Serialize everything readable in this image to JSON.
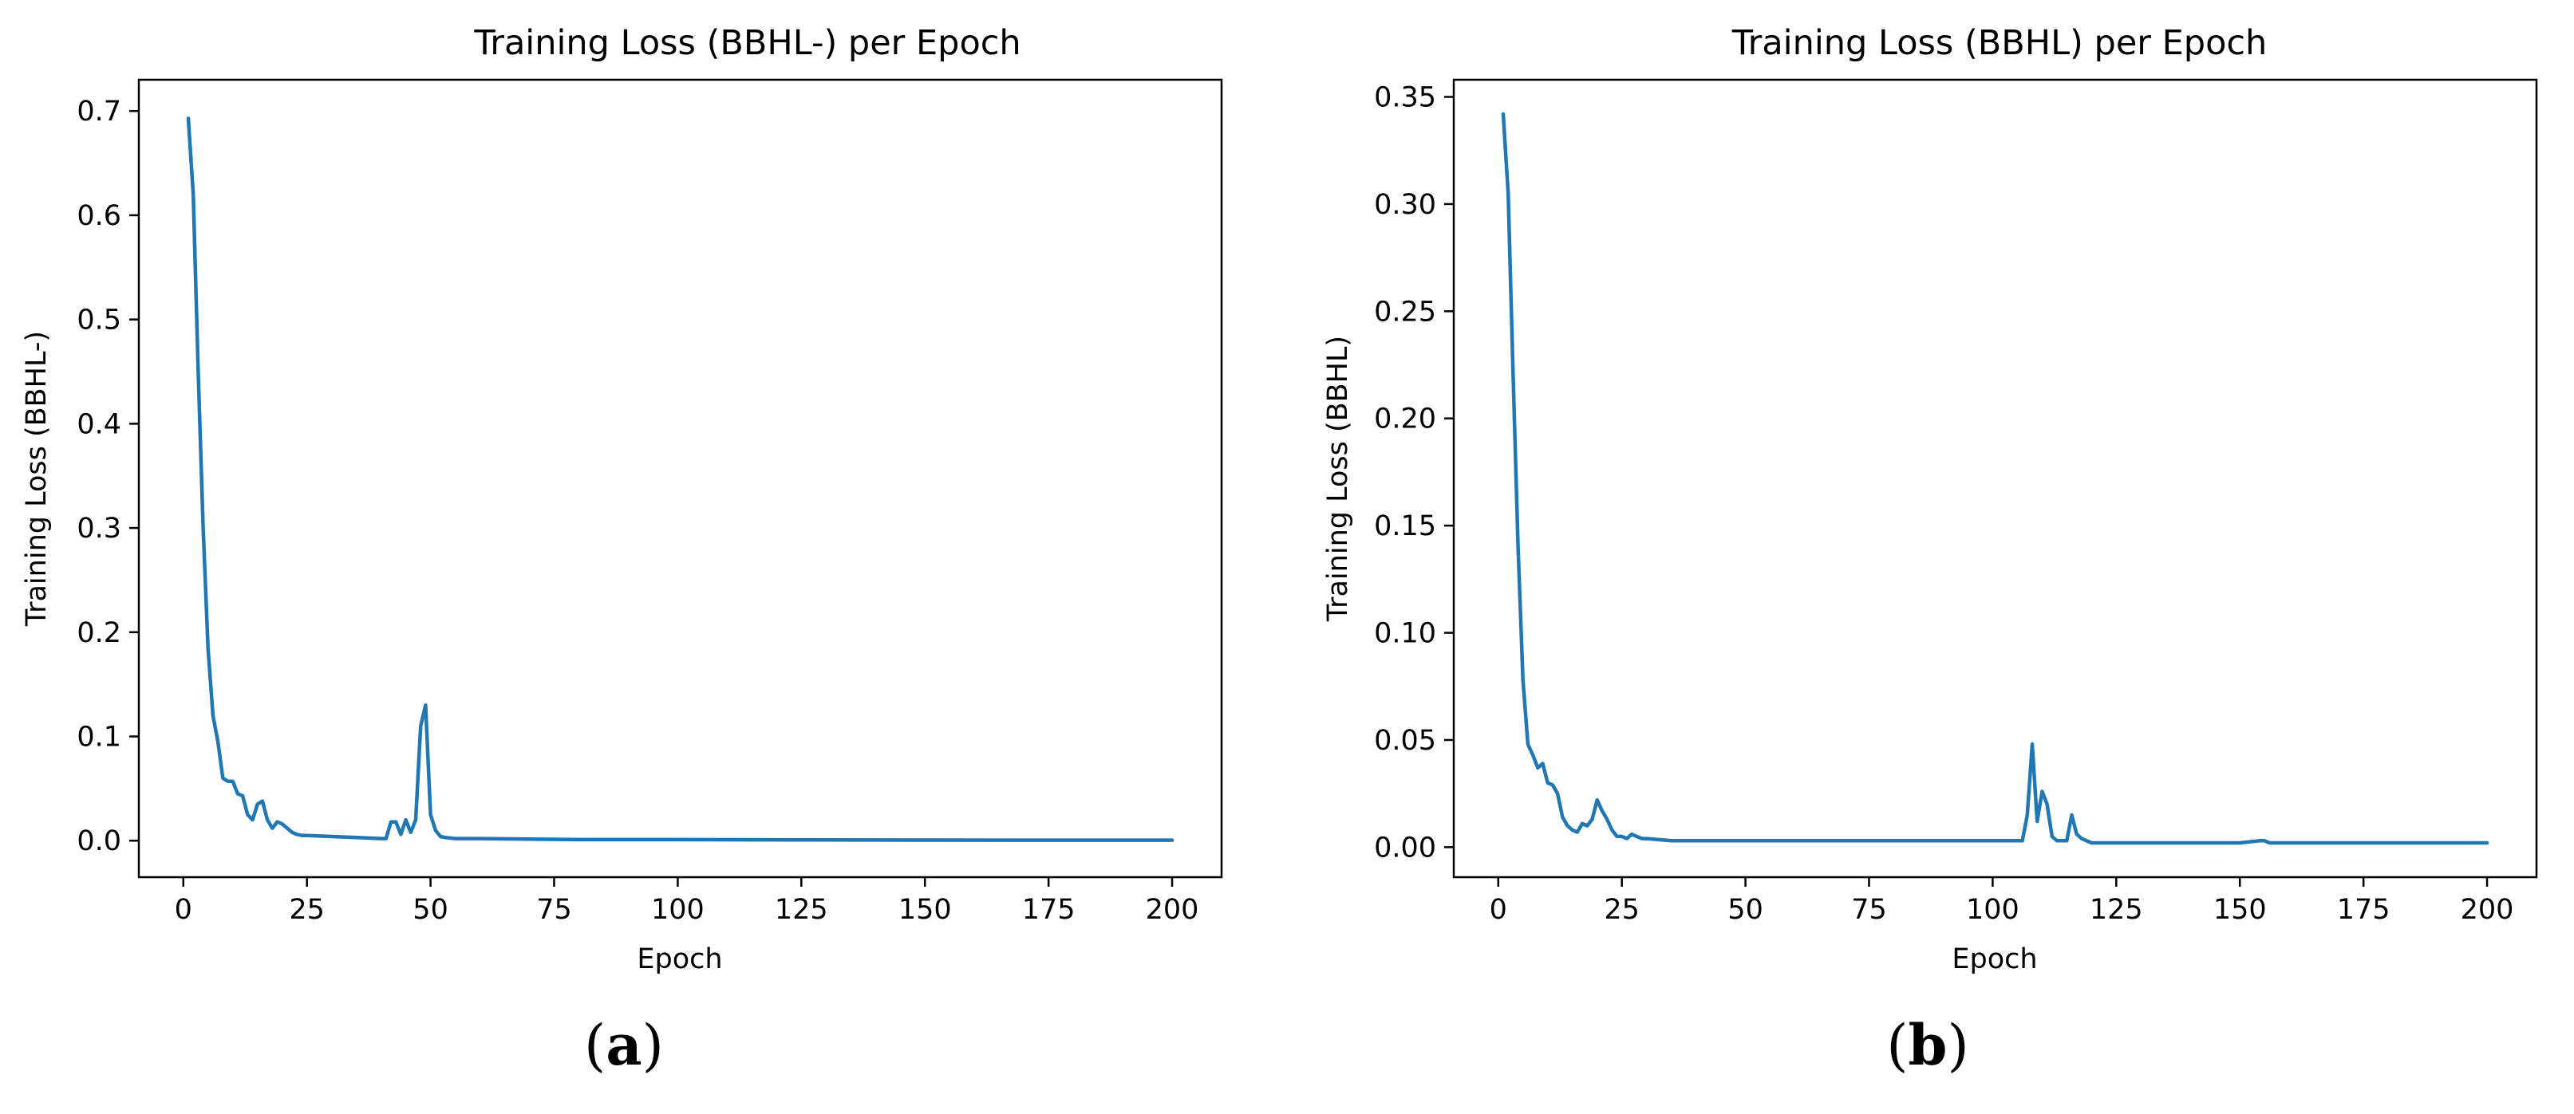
{
  "figure": {
    "series_color": "#1f77b4",
    "captions": [
      {
        "open": "(",
        "letter": "a",
        "close": ")"
      },
      {
        "open": "(",
        "letter": "b",
        "close": ")"
      }
    ]
  },
  "chart_data": [
    {
      "type": "line",
      "title": "Training Loss (BBHL-) per Epoch",
      "xlabel": "Epoch",
      "ylabel": "Training Loss (BBHL-)",
      "xlim": [
        -9,
        210
      ],
      "ylim": [
        -0.035,
        0.73
      ],
      "xticks": [
        0,
        25,
        50,
        75,
        100,
        125,
        150,
        175,
        200
      ],
      "xtick_labels": [
        "0",
        "25",
        "50",
        "75",
        "100",
        "125",
        "150",
        "175",
        "200"
      ],
      "yticks": [
        0.0,
        0.1,
        0.2,
        0.3,
        0.4,
        0.5,
        0.6,
        0.7
      ],
      "ytick_labels": [
        "0.0",
        "0.1",
        "0.2",
        "0.3",
        "0.4",
        "0.5",
        "0.6",
        "0.7"
      ],
      "grid": false,
      "series": [
        {
          "x": [
            1,
            2,
            3,
            4,
            5,
            6,
            7,
            8,
            9,
            10,
            11,
            12,
            13,
            14,
            15,
            16,
            17,
            18,
            19,
            20,
            21,
            22,
            23,
            24,
            25,
            30,
            35,
            40,
            41,
            42,
            43,
            44,
            45,
            46,
            47,
            48,
            49,
            50,
            51,
            52,
            53,
            55,
            60,
            80,
            100,
            125,
            150,
            175,
            200
          ],
          "y": [
            0.693,
            0.62,
            0.45,
            0.3,
            0.185,
            0.12,
            0.095,
            0.06,
            0.057,
            0.057,
            0.045,
            0.043,
            0.025,
            0.02,
            0.035,
            0.038,
            0.02,
            0.012,
            0.018,
            0.016,
            0.012,
            0.008,
            0.006,
            0.005,
            0.005,
            0.004,
            0.003,
            0.002,
            0.002,
            0.018,
            0.018,
            0.006,
            0.02,
            0.008,
            0.02,
            0.11,
            0.13,
            0.025,
            0.01,
            0.004,
            0.003,
            0.002,
            0.002,
            0.001,
            0.001,
            0.0008,
            0.0006,
            0.0005,
            0.0005
          ]
        }
      ]
    },
    {
      "type": "line",
      "title": "Training Loss (BBHL) per Epoch",
      "xlabel": "Epoch",
      "ylabel": "Training Loss (BBHL)",
      "xlim": [
        -9,
        210
      ],
      "ylim": [
        -0.014,
        0.358
      ],
      "xticks": [
        0,
        25,
        50,
        75,
        100,
        125,
        150,
        175,
        200
      ],
      "xtick_labels": [
        "0",
        "25",
        "50",
        "75",
        "100",
        "125",
        "150",
        "175",
        "200"
      ],
      "yticks": [
        0.0,
        0.05,
        0.1,
        0.15,
        0.2,
        0.25,
        0.3,
        0.35
      ],
      "ytick_labels": [
        "0.00",
        "0.05",
        "0.10",
        "0.15",
        "0.20",
        "0.25",
        "0.30",
        "0.35"
      ],
      "grid": false,
      "series": [
        {
          "x": [
            1,
            2,
            3,
            4,
            5,
            6,
            7,
            8,
            9,
            10,
            11,
            12,
            13,
            14,
            15,
            16,
            17,
            18,
            19,
            20,
            21,
            22,
            23,
            24,
            25,
            26,
            27,
            28,
            29,
            30,
            35,
            40,
            50,
            60,
            70,
            80,
            90,
            100,
            105,
            106,
            107,
            108,
            109,
            110,
            111,
            112,
            113,
            114,
            115,
            116,
            117,
            118,
            119,
            120,
            130,
            150,
            154,
            155,
            156,
            160,
            180,
            200
          ],
          "y": [
            0.342,
            0.305,
            0.22,
            0.14,
            0.078,
            0.048,
            0.043,
            0.037,
            0.039,
            0.03,
            0.029,
            0.025,
            0.014,
            0.01,
            0.008,
            0.007,
            0.011,
            0.01,
            0.013,
            0.022,
            0.017,
            0.013,
            0.008,
            0.005,
            0.005,
            0.004,
            0.006,
            0.005,
            0.004,
            0.004,
            0.003,
            0.003,
            0.003,
            0.003,
            0.003,
            0.003,
            0.003,
            0.003,
            0.003,
            0.003,
            0.015,
            0.048,
            0.012,
            0.026,
            0.02,
            0.005,
            0.003,
            0.003,
            0.003,
            0.015,
            0.006,
            0.004,
            0.003,
            0.002,
            0.002,
            0.002,
            0.003,
            0.003,
            0.002,
            0.002,
            0.002,
            0.002
          ]
        }
      ]
    }
  ]
}
